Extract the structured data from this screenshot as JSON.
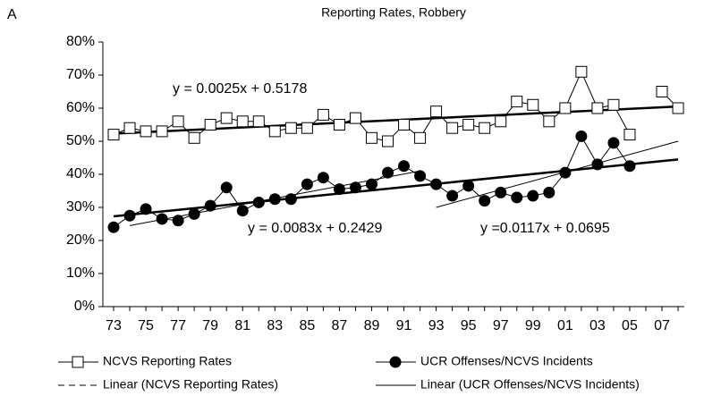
{
  "chart_data": {
    "type": "line",
    "panel_label": "A",
    "title": "Reporting Rates, Robbery",
    "categories": [
      "73",
      null,
      "75",
      null,
      "77",
      null,
      "79",
      null,
      "81",
      null,
      "83",
      null,
      "85",
      null,
      "87",
      null,
      "89",
      null,
      "91",
      null,
      "93",
      null,
      "95",
      null,
      "97",
      null,
      "99",
      null,
      "01",
      null,
      "03",
      null,
      "05",
      null,
      "07",
      null
    ],
    "ylim": [
      0,
      80
    ],
    "yticks": [
      {
        "value": 0,
        "label": "0%"
      },
      {
        "value": 10,
        "label": "10%"
      },
      {
        "value": 20,
        "label": "20%"
      },
      {
        "value": 30,
        "label": "30%"
      },
      {
        "value": 40,
        "label": "40%"
      },
      {
        "value": 50,
        "label": "50%"
      },
      {
        "value": 60,
        "label": "60%"
      },
      {
        "value": 70,
        "label": "70%"
      },
      {
        "value": 80,
        "label": "80%"
      }
    ],
    "series": [
      {
        "name": "NCVS Reporting Rates",
        "color": "#000000",
        "marker": "square",
        "values": [
          52,
          54,
          53,
          53,
          56,
          51,
          55,
          57,
          56,
          56,
          53,
          54,
          54,
          58,
          55,
          57,
          51,
          50,
          55,
          51,
          59,
          54,
          55,
          54,
          56,
          62,
          61,
          56,
          60,
          71,
          60,
          61,
          52,
          null,
          65,
          60
        ]
      },
      {
        "name": "UCR Offenses/NCVS Incidents",
        "color": "#000000",
        "marker": "circle",
        "values": [
          24,
          27.5,
          29.5,
          26.5,
          26,
          28,
          30.5,
          36,
          29,
          31.5,
          32.5,
          32.5,
          37,
          39,
          35.5,
          36,
          37,
          40.5,
          42.5,
          39.5,
          37,
          33.5,
          36.5,
          32,
          34.5,
          33,
          33.5,
          34.5,
          40.5,
          51.5,
          43,
          49.5,
          42.5,
          null,
          null,
          null
        ]
      }
    ],
    "trend_legend": [
      {
        "name": "Linear (NCVS Reporting Rates)",
        "dash": true
      },
      {
        "name": "Linear (UCR Offenses/NCVS Incidents)",
        "dash": false
      }
    ],
    "trendlines": [
      {
        "x": [
          0,
          35
        ],
        "values": [
          52.3,
          60.5
        ],
        "width": 2.5
      },
      {
        "x": [
          0,
          35
        ],
        "values": [
          27.3,
          44.5
        ],
        "width": 2.5
      },
      {
        "x": [
          1,
          19
        ],
        "values": [
          24.5,
          41
        ],
        "width": 1
      },
      {
        "x": [
          20,
          35
        ],
        "values": [
          30,
          50
        ],
        "width": 1
      }
    ],
    "annotations": [
      "y = 0.0025x + 0.5178",
      "y = 0.0083x + 0.2429",
      "y =0.0117x + 0.0695"
    ]
  }
}
